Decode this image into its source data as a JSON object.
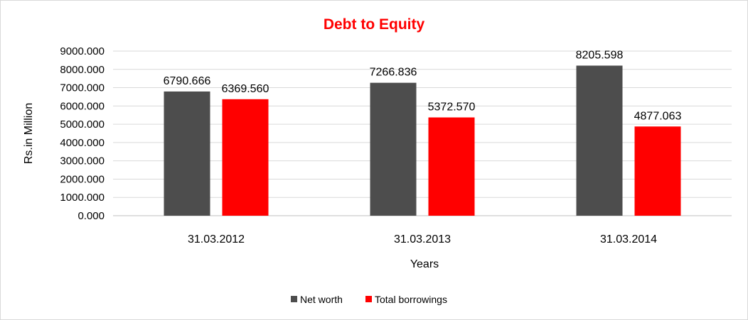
{
  "chart_data": {
    "type": "bar",
    "title": "Debt to Equity",
    "xlabel": "Years",
    "ylabel": "Rs.in Million",
    "categories": [
      "31.03.2012",
      "31.03.2013",
      "31.03.2014"
    ],
    "series": [
      {
        "name": "Net worth",
        "color": "#4d4d4d",
        "values": [
          6790.666,
          7266.836,
          8205.598
        ],
        "labels": [
          "6790.666",
          "7266.836",
          "8205.598"
        ]
      },
      {
        "name": "Total borrowings",
        "color": "#ff0000",
        "values": [
          6369.56,
          5372.57,
          4877.063
        ],
        "labels": [
          "6369.560",
          "5372.570",
          "4877.063"
        ]
      }
    ],
    "ylim": [
      0,
      9000
    ],
    "yticks": [
      "0.000",
      "1000.000",
      "2000.000",
      "3000.000",
      "4000.000",
      "5000.000",
      "6000.000",
      "7000.000",
      "8000.000",
      "9000.000"
    ],
    "grid": true,
    "legend_position": "bottom",
    "title_color": "#ff0000"
  }
}
